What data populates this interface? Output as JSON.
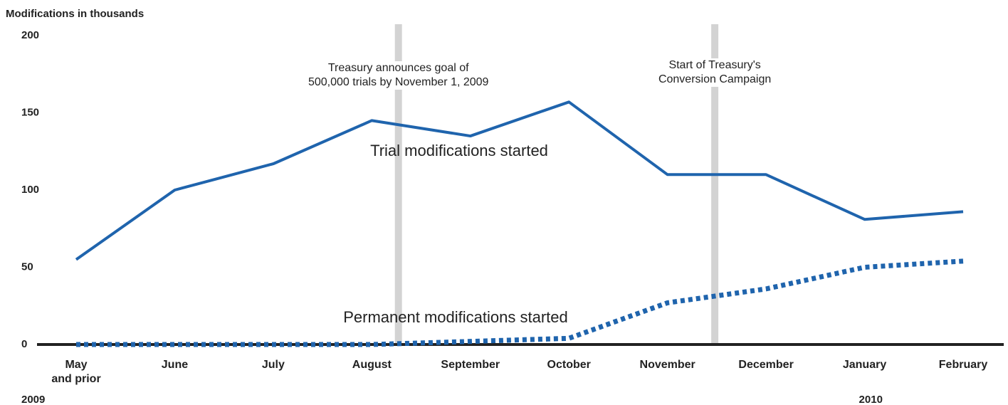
{
  "chart_data": {
    "type": "line",
    "title": "Modifications in thousands",
    "categories": [
      "May\nand prior",
      "June",
      "July",
      "August",
      "September",
      "October",
      "November",
      "December",
      "January",
      "February"
    ],
    "years": [
      "2009",
      "2010"
    ],
    "series": [
      {
        "name": "Trial modifications started",
        "color": "#1f64ad",
        "dash": false,
        "values": [
          55,
          100,
          117,
          145,
          135,
          157,
          110,
          110,
          81,
          86
        ]
      },
      {
        "name": "Permanent modifications started",
        "color": "#1f64ad",
        "dash": true,
        "values": [
          0,
          0,
          0,
          0,
          2,
          4,
          27,
          36,
          50,
          54
        ]
      }
    ],
    "events": [
      "Treasury announces goal of\n500,000 trials by November 1, 2009",
      "Start of Treasury's\nConversion Campaign"
    ],
    "ylim": [
      0,
      200
    ],
    "yticks": [
      0,
      50,
      100,
      150,
      200
    ],
    "grid": false
  }
}
